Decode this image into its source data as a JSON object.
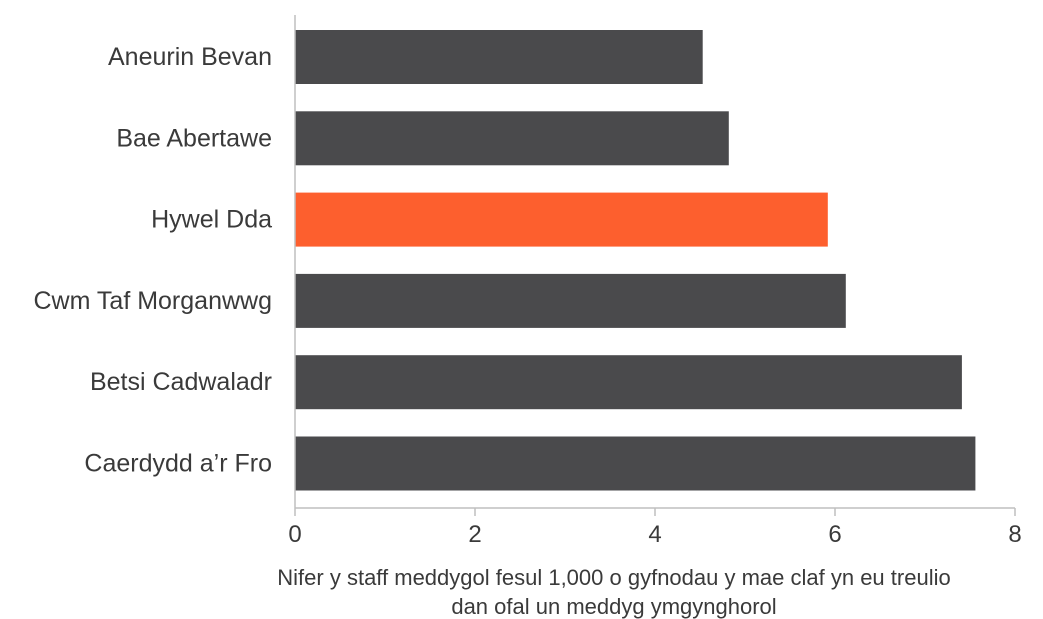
{
  "chart_data": {
    "type": "bar",
    "orientation": "horizontal",
    "categories": [
      "Aneurin Bevan",
      "Bae Abertawe",
      "Hywel Dda",
      "Cwm Taf Morganwwg",
      "Betsi Cadwaladr",
      "Caerdydd a’r Fro"
    ],
    "values": [
      4.53,
      4.82,
      5.92,
      6.12,
      7.41,
      7.56
    ],
    "highlight_index": 2,
    "xlim": [
      0,
      8
    ],
    "xticks": [
      0,
      2,
      4,
      6,
      8
    ],
    "xlabel_lines": [
      "Nifer y staff meddygol fesul 1,000 o gyfnodau y mae claf yn eu treulio",
      "dan ofal un meddyg ymgynghorol"
    ],
    "grid": false,
    "legend": "none",
    "colors": {
      "bar": "#4a4a4c",
      "highlight": "#fd5f2e",
      "axis": "#bfbfbf",
      "text": "#3a3a3a"
    }
  }
}
